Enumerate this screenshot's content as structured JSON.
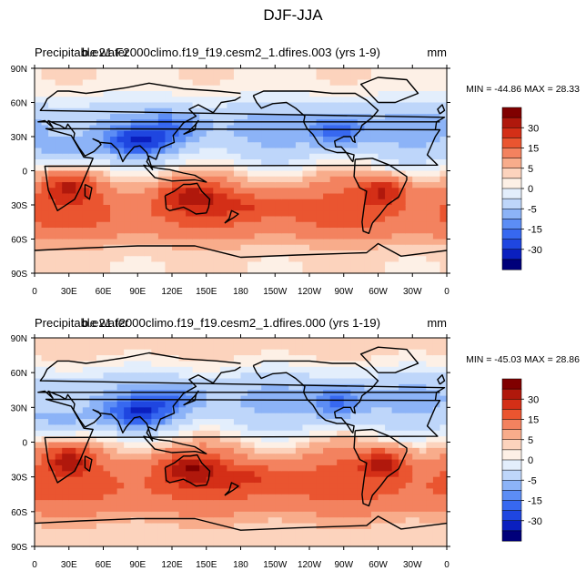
{
  "figure_title": "DJF-JJA",
  "colorbar_colors": [
    "#00007a",
    "#0a1fbf",
    "#1f46e0",
    "#3768f0",
    "#5c8df5",
    "#8cb3f7",
    "#bed6fa",
    "#e3eefc",
    "#fdf0e6",
    "#fcd3bd",
    "#f8ac8b",
    "#f3825f",
    "#ea5530",
    "#d42f17",
    "#b0180c",
    "#800000"
  ],
  "chart_data": [
    {
      "type": "heatmap",
      "title_left": "Precipitable water",
      "title_overlap": "b.e21.F2000climo.f19_f19.cesm2_1.dfires.003 (yrs 1-9)",
      "units": "mm",
      "min_max_label": "MIN = -44.86 MAX =  28.33",
      "min": -44.86,
      "max": 28.33,
      "xlabel": "",
      "ylabel": "",
      "x_ticks": [
        "0",
        "30E",
        "60E",
        "90E",
        "120E",
        "150E",
        "180",
        "150W",
        "120W",
        "90W",
        "60W",
        "30W",
        "0"
      ],
      "y_ticks": [
        "90N",
        "60N",
        "30N",
        "0",
        "30S",
        "60S",
        "90S"
      ],
      "lon_range": [
        0,
        360
      ],
      "lat_range": [
        -90,
        90
      ],
      "colorbar_labels": [
        "30",
        "15",
        "5",
        "0",
        "-5",
        "-15",
        "-30"
      ],
      "contour_levels": [
        -35,
        -30,
        -25,
        -20,
        -15,
        -10,
        -5,
        -2,
        0,
        2,
        5,
        10,
        15,
        20,
        25,
        30
      ]
    },
    {
      "type": "heatmap",
      "title_left": "Precipitable water",
      "title_overlap": "b.e21.f2000climo.f19_f19.cesm2_1.dfires.000 (yrs 1-19)",
      "units": "mm",
      "min_max_label": "MIN = -45.03 MAX =  28.86",
      "min": -45.03,
      "max": 28.86,
      "xlabel": "",
      "ylabel": "",
      "x_ticks": [
        "0",
        "30E",
        "60E",
        "90E",
        "120E",
        "150E",
        "180",
        "150W",
        "120W",
        "90W",
        "60W",
        "30W",
        "0"
      ],
      "y_ticks": [
        "90N",
        "60N",
        "30N",
        "0",
        "30S",
        "60S",
        "90S"
      ],
      "lon_range": [
        0,
        360
      ],
      "lat_range": [
        -90,
        90
      ],
      "colorbar_labels": [
        "30",
        "15",
        "5",
        "0",
        "-5",
        "-15",
        "-30"
      ],
      "contour_levels": [
        -35,
        -30,
        -25,
        -20,
        -15,
        -10,
        -5,
        -2,
        0,
        2,
        5,
        10,
        15,
        20,
        25,
        30
      ]
    }
  ]
}
